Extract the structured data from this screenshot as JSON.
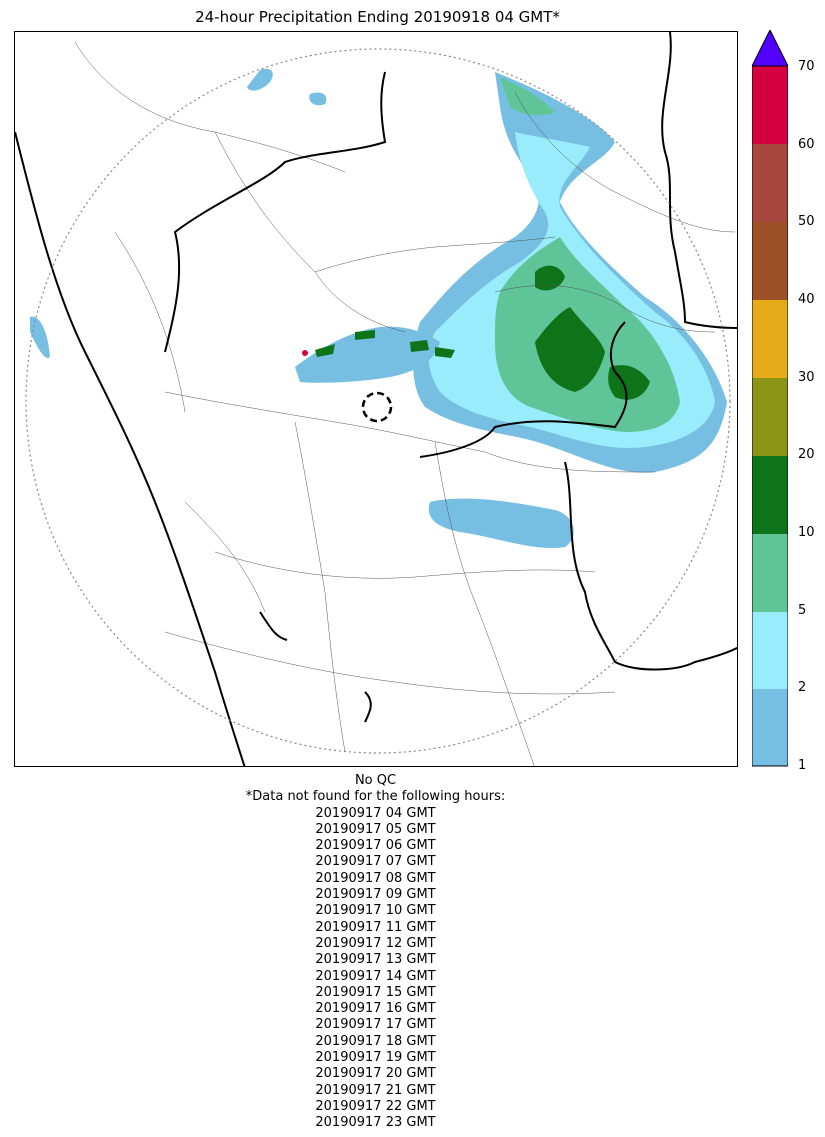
{
  "title": "24-hour Precipitation Ending 20190918 04 GMT*",
  "colorbar": {
    "ticks": [
      "1",
      "2",
      "5",
      "10",
      "20",
      "30",
      "40",
      "50",
      "60",
      "70"
    ],
    "colors": [
      "#76bfe3",
      "#99ecfb",
      "#5fc599",
      "#0e7319",
      "#8b9415",
      "#e7aa18",
      "#9e5128",
      "#a8473f",
      "#d4003f",
      "#5200ff"
    ]
  },
  "footer": {
    "qc": "No QC",
    "note": "*Data not found for the following hours:",
    "missing_hours": [
      "20190917 04 GMT",
      "20190917 05 GMT",
      "20190917 06 GMT",
      "20190917 07 GMT",
      "20190917 08 GMT",
      "20190917 09 GMT",
      "20190917 10 GMT",
      "20190917 11 GMT",
      "20190917 12 GMT",
      "20190917 13 GMT",
      "20190917 14 GMT",
      "20190917 15 GMT",
      "20190917 16 GMT",
      "20190917 17 GMT",
      "20190917 18 GMT",
      "20190917 19 GMT",
      "20190917 20 GMT",
      "20190917 21 GMT",
      "20190917 22 GMT",
      "20190917 23 GMT"
    ]
  }
}
